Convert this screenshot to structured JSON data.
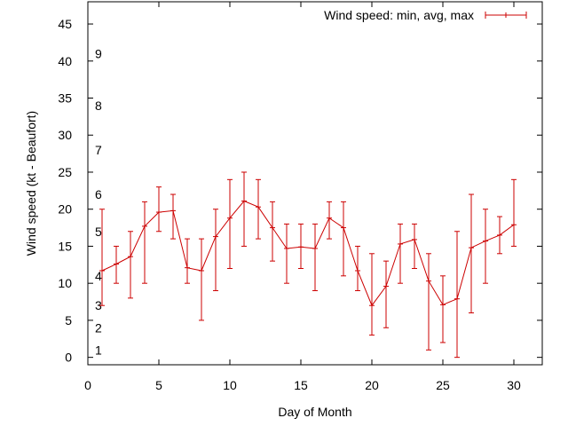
{
  "chart_data": {
    "type": "line",
    "xlabel": "Day of Month",
    "ylabel": "Wind speed (kt - Beaufort)",
    "xlim": [
      0,
      32
    ],
    "ylim": [
      -1,
      48
    ],
    "x_ticks": [
      0,
      5,
      10,
      15,
      20,
      25,
      30
    ],
    "y_ticks": [
      0,
      5,
      10,
      15,
      20,
      25,
      30,
      35,
      40,
      45
    ],
    "grid": false,
    "legend_position": "top-right",
    "beaufort_labels": [
      {
        "label": "1",
        "y": 1
      },
      {
        "label": "2",
        "y": 4
      },
      {
        "label": "3",
        "y": 7
      },
      {
        "label": "4",
        "y": 11
      },
      {
        "label": "5",
        "y": 17
      },
      {
        "label": "6",
        "y": 22
      },
      {
        "label": "7",
        "y": 28
      },
      {
        "label": "8",
        "y": 34
      },
      {
        "label": "9",
        "y": 41
      }
    ],
    "series": [
      {
        "name": "Wind speed: min, avg, max",
        "color": "#cc0000",
        "x": [
          1,
          2,
          3,
          4,
          5,
          6,
          7,
          8,
          9,
          10,
          11,
          12,
          13,
          14,
          15,
          16,
          17,
          18,
          19,
          20,
          21,
          22,
          23,
          24,
          25,
          26,
          27,
          28,
          29,
          30
        ],
        "y": [
          11.7,
          12.6,
          13.6,
          17.7,
          19.6,
          19.8,
          12.1,
          11.7,
          16.3,
          18.8,
          21.1,
          20.3,
          17.5,
          14.7,
          14.9,
          14.7,
          18.8,
          17.5,
          11.7,
          7.0,
          9.6,
          15.3,
          15.9,
          10.3,
          7.1,
          7.9,
          14.8,
          15.7,
          16.5,
          17.9
        ],
        "min": [
          7,
          10,
          8,
          10,
          17,
          16,
          10,
          5,
          9,
          12,
          15,
          16,
          13,
          10,
          12,
          9,
          16,
          11,
          9,
          3,
          4,
          10,
          12,
          1,
          2,
          0,
          6,
          10,
          14,
          15
        ],
        "max": [
          20,
          15,
          17,
          21,
          23,
          22,
          16,
          16,
          20,
          24,
          25,
          24,
          21,
          18,
          18,
          18,
          21,
          21,
          15,
          14,
          13,
          18,
          18,
          14,
          11,
          17,
          22,
          20,
          19,
          24
        ]
      }
    ]
  }
}
